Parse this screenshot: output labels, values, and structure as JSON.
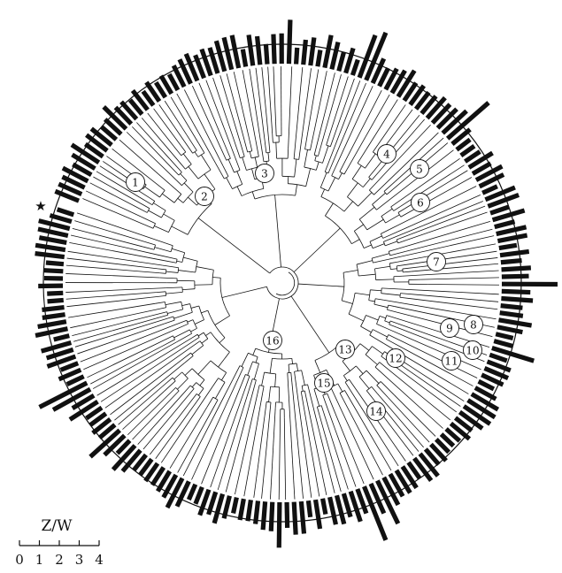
{
  "figure": {
    "marker": "★",
    "clade_labels": [
      "1",
      "2",
      "3",
      "4",
      "5",
      "6",
      "7",
      "8",
      "9",
      "10",
      "11",
      "12",
      "13",
      "14",
      "15",
      "16"
    ],
    "scale_bar": {
      "title": "Z/W",
      "ticks": [
        "0",
        "1",
        "2",
        "3",
        "4"
      ]
    }
  },
  "colors": {
    "ink": "#111111",
    "background": "#ffffff"
  },
  "icons": {
    "marker": "star-icon"
  }
}
